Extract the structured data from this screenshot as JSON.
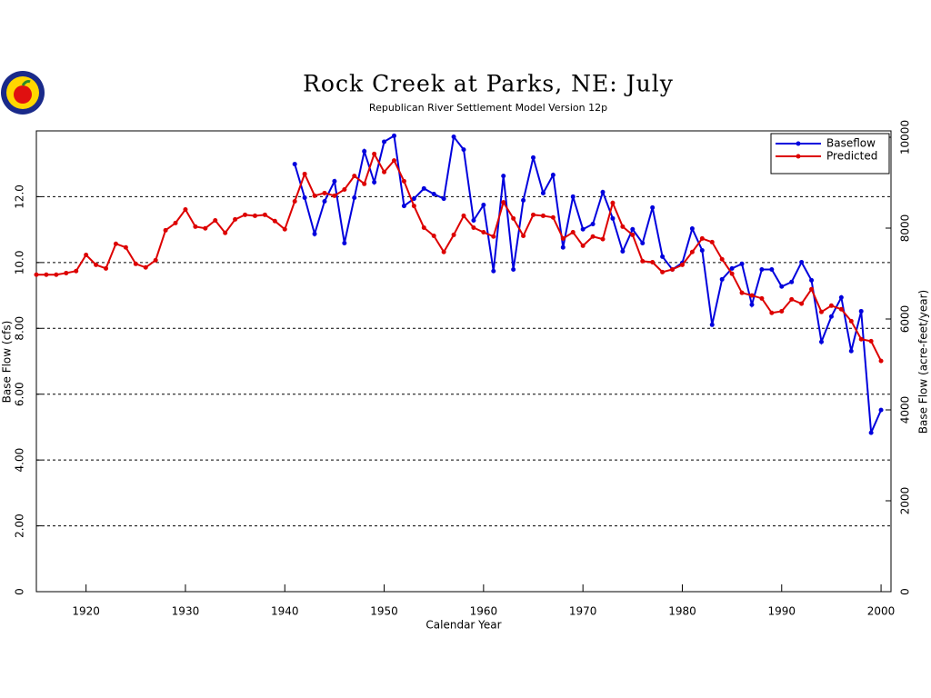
{
  "chart_data": {
    "type": "line",
    "title": "Rock Creek at Parks, NE: July",
    "subtitle": "Republican River Settlement Model Version 12p",
    "x_label": "Calendar Year",
    "y_label": "Base Flow (cfs)",
    "y2_label": "Base Flow (acre-feet/year)",
    "x": [
      1915,
      1916,
      1917,
      1918,
      1919,
      1920,
      1921,
      1922,
      1923,
      1924,
      1925,
      1926,
      1927,
      1928,
      1929,
      1930,
      1931,
      1932,
      1933,
      1934,
      1935,
      1936,
      1937,
      1938,
      1939,
      1940,
      1941,
      1942,
      1943,
      1944,
      1945,
      1946,
      1947,
      1948,
      1949,
      1950,
      1951,
      1952,
      1953,
      1954,
      1955,
      1956,
      1957,
      1958,
      1959,
      1960,
      1961,
      1962,
      1963,
      1964,
      1965,
      1966,
      1967,
      1968,
      1969,
      1970,
      1971,
      1972,
      1973,
      1974,
      1975,
      1976,
      1977,
      1978,
      1979,
      1980,
      1981,
      1982,
      1983,
      1984,
      1985,
      1986,
      1987,
      1988,
      1989,
      1990,
      1991,
      1992,
      1993,
      1994,
      1995,
      1996,
      1997,
      1998,
      1999,
      2000
    ],
    "series": [
      {
        "name": "Baseflow",
        "color": "#0000dd",
        "values": [
          null,
          null,
          null,
          null,
          null,
          null,
          null,
          null,
          null,
          null,
          null,
          null,
          null,
          null,
          null,
          null,
          null,
          null,
          null,
          null,
          null,
          null,
          null,
          null,
          null,
          null,
          12.99,
          11.97,
          10.87,
          11.86,
          12.47,
          10.59,
          11.97,
          13.38,
          12.44,
          13.67,
          13.85,
          11.72,
          11.94,
          12.25,
          12.08,
          11.94,
          13.82,
          13.43,
          11.28,
          11.75,
          9.74,
          12.63,
          9.79,
          11.89,
          13.19,
          12.11,
          12.66,
          10.46,
          12.0,
          11.01,
          11.17,
          12.14,
          11.34,
          10.34,
          11.01,
          10.59,
          11.67,
          10.18,
          9.79,
          9.99,
          11.03,
          10.37,
          8.11,
          9.49,
          9.82,
          9.96,
          8.72,
          9.79,
          9.79,
          9.27,
          9.41,
          10.01,
          9.46,
          7.59,
          8.36,
          8.94,
          7.31,
          8.52,
          4.83,
          5.52
        ]
      },
      {
        "name": "Predicted",
        "color": "#dd0000",
        "values": [
          9.63,
          9.63,
          9.63,
          9.68,
          9.74,
          10.23,
          9.93,
          9.82,
          10.57,
          10.46,
          9.96,
          9.85,
          10.07,
          10.98,
          11.2,
          11.61,
          11.09,
          11.04,
          11.28,
          10.9,
          11.31,
          11.45,
          11.42,
          11.45,
          11.26,
          11.01,
          11.86,
          12.69,
          12.03,
          12.11,
          12.03,
          12.22,
          12.63,
          12.39,
          13.3,
          12.75,
          13.1,
          12.47,
          11.72,
          11.06,
          10.81,
          10.32,
          10.84,
          11.42,
          11.06,
          10.92,
          10.79,
          11.83,
          11.34,
          10.81,
          11.45,
          11.42,
          11.37,
          10.73,
          10.92,
          10.51,
          10.79,
          10.71,
          11.81,
          11.09,
          10.84,
          10.04,
          10.01,
          9.71,
          9.79,
          9.93,
          10.32,
          10.73,
          10.62,
          10.1,
          9.66,
          9.08,
          9.0,
          8.91,
          8.47,
          8.52,
          8.88,
          8.75,
          9.19,
          8.5,
          8.69,
          8.58,
          8.22,
          7.67,
          7.61,
          7.01
        ]
      }
    ],
    "xlim": [
      1915,
      2001
    ],
    "xticks": [
      1920,
      1930,
      1940,
      1950,
      1960,
      1970,
      1980,
      1990,
      2000
    ],
    "ylim": [
      0,
      14
    ],
    "yticks": [
      0,
      {
        "value": 2,
        "label": "2.00"
      },
      {
        "value": 4,
        "label": "4.00"
      },
      {
        "value": 6,
        "label": "6.00"
      },
      {
        "value": 8,
        "label": "8.00"
      },
      {
        "value": 10,
        "label": "10.0"
      },
      {
        "value": 12,
        "label": "12.0"
      }
    ],
    "y2lim": [
      0,
      10140
    ],
    "y2ticks": [
      0,
      2000,
      4000,
      6000,
      8000,
      10000
    ],
    "grid": true,
    "legend": "upper right"
  }
}
